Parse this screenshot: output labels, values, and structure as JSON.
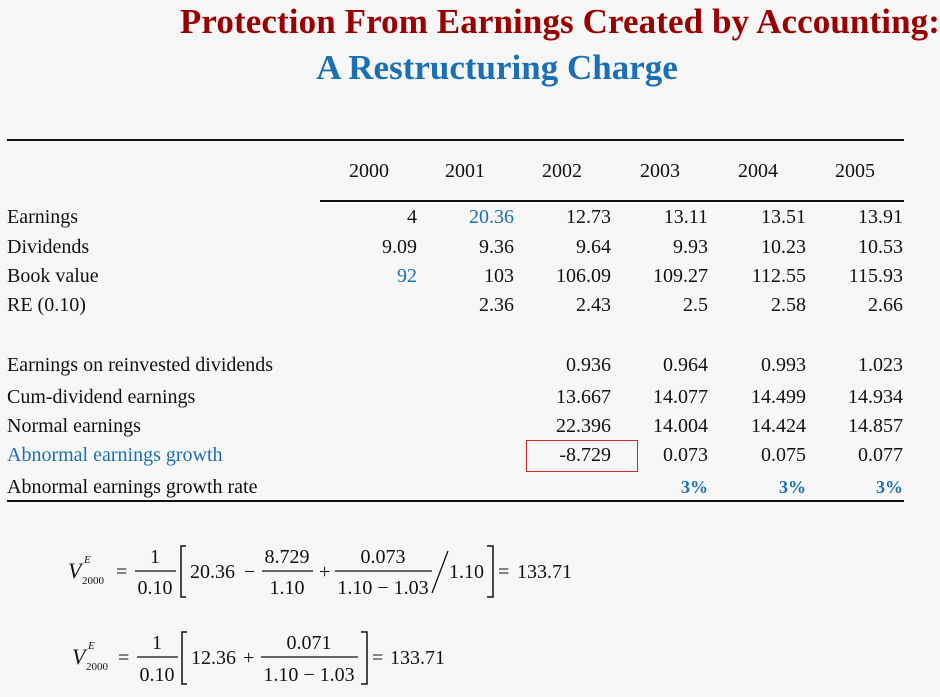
{
  "title": {
    "line1": "Protection From Earnings Created by Accounting:",
    "line2": "A Restructuring Charge"
  },
  "table": {
    "years": [
      "2000",
      "2001",
      "2002",
      "2003",
      "2004",
      "2005"
    ],
    "rows": [
      {
        "label": "Earnings",
        "values": [
          "4",
          "20.36",
          "12.73",
          "13.11",
          "13.51",
          "13.91"
        ]
      },
      {
        "label": "Dividends",
        "values": [
          "9.09",
          "9.36",
          "9.64",
          "9.93",
          "10.23",
          "10.53"
        ]
      },
      {
        "label": "Book value",
        "values": [
          "92",
          "103",
          "106.09",
          "109.27",
          "112.55",
          "115.93"
        ]
      },
      {
        "label": "RE (0.10)",
        "values": [
          "",
          "2.36",
          "2.43",
          "2.5",
          "2.58",
          "2.66"
        ]
      },
      {
        "label": "Earnings on reinvested dividends",
        "values": [
          "",
          "",
          "0.936",
          "0.964",
          "0.993",
          "1.023"
        ]
      },
      {
        "label": "Cum-dividend earnings",
        "values": [
          "",
          "",
          "13.667",
          "14.077",
          "14.499",
          "14.934"
        ]
      },
      {
        "label": "Normal earnings",
        "values": [
          "",
          "",
          "22.396",
          "14.004",
          "14.424",
          "14.857"
        ]
      },
      {
        "label": "Abnormal earnings growth",
        "values": [
          "",
          "",
          "-8.729",
          "0.073",
          "0.075",
          "0.077"
        ]
      },
      {
        "label": "Abnormal earnings growth rate",
        "values": [
          "",
          "",
          "",
          "3%",
          "3%",
          "3%"
        ]
      }
    ]
  },
  "colors": {
    "title_red": "#9b0000",
    "accent_blue": "#1a6fb5",
    "highlight_box": "#cc2a2a"
  },
  "formula1": {
    "V": "V",
    "sup": "E",
    "sub": "2000",
    "eq": "=",
    "frac_num": "1",
    "frac_den": "0.10",
    "term1": "20.36",
    "minus": "−",
    "f2_num": "8.729",
    "f2_den": "1.10",
    "plus": "+",
    "f3_num": "0.073",
    "f3_den": "1.10 − 1.03",
    "div_by": "1.10",
    "eq2": "=",
    "result": "133.71"
  },
  "formula2": {
    "V": "V",
    "sup": "E",
    "sub": "2000",
    "eq": "=",
    "frac_num": "1",
    "frac_den": "0.10",
    "term1": "12.36",
    "plus": "+",
    "f2_num": "0.071",
    "f2_den": "1.10 − 1.03",
    "eq2": "=",
    "result": "133.71"
  }
}
